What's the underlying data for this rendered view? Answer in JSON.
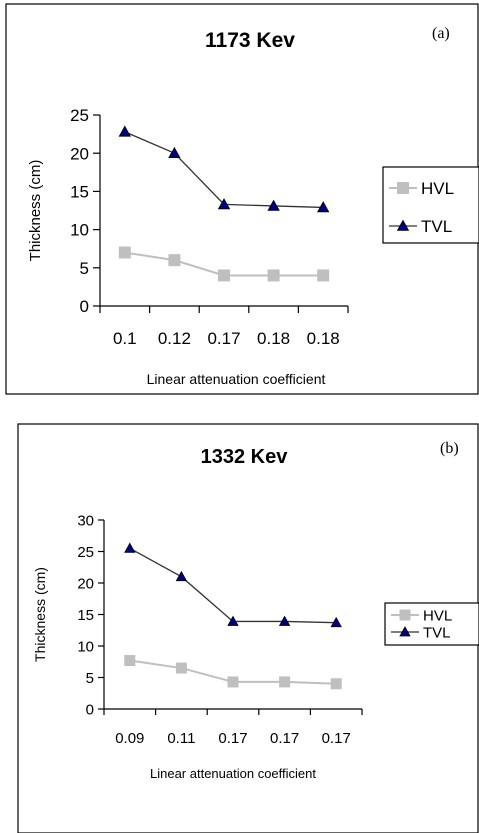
{
  "chart_data": [
    {
      "type": "line",
      "panel_label": "(a)",
      "title": "1173 Kev",
      "xlabel": "Linear attenuation coefficient",
      "ylabel": "Thickness (cm)",
      "categories": [
        "0.1",
        "0.12",
        "0.17",
        "0.18",
        "0.18"
      ],
      "ylim": [
        0,
        25
      ],
      "yticks": [
        0,
        5,
        10,
        15,
        20,
        25
      ],
      "grid": false,
      "legend": "right",
      "series": [
        {
          "name": "HVL",
          "values": [
            7,
            6,
            4,
            4,
            4
          ],
          "color": "#bfbfbf",
          "marker": "square"
        },
        {
          "name": "TVL",
          "values": [
            22.8,
            20,
            13.3,
            13.1,
            12.9
          ],
          "color": "#000080",
          "marker": "triangle"
        }
      ]
    },
    {
      "type": "line",
      "panel_label": "(b)",
      "title": "1332 Kev",
      "xlabel": "Linear attenuation coefficient",
      "ylabel": "Thickness (cm)",
      "categories": [
        "0.09",
        "0.11",
        "0.17",
        "0.17",
        "0.17"
      ],
      "ylim": [
        0,
        30
      ],
      "yticks": [
        0,
        5,
        10,
        15,
        20,
        25,
        30
      ],
      "grid": false,
      "legend": "right",
      "series": [
        {
          "name": "HVL",
          "values": [
            7.7,
            6.5,
            4.3,
            4.3,
            4
          ],
          "color": "#bfbfbf",
          "marker": "square"
        },
        {
          "name": "TVL",
          "values": [
            25.5,
            21,
            13.9,
            13.9,
            13.7
          ],
          "color": "#000080",
          "marker": "triangle"
        }
      ]
    }
  ]
}
